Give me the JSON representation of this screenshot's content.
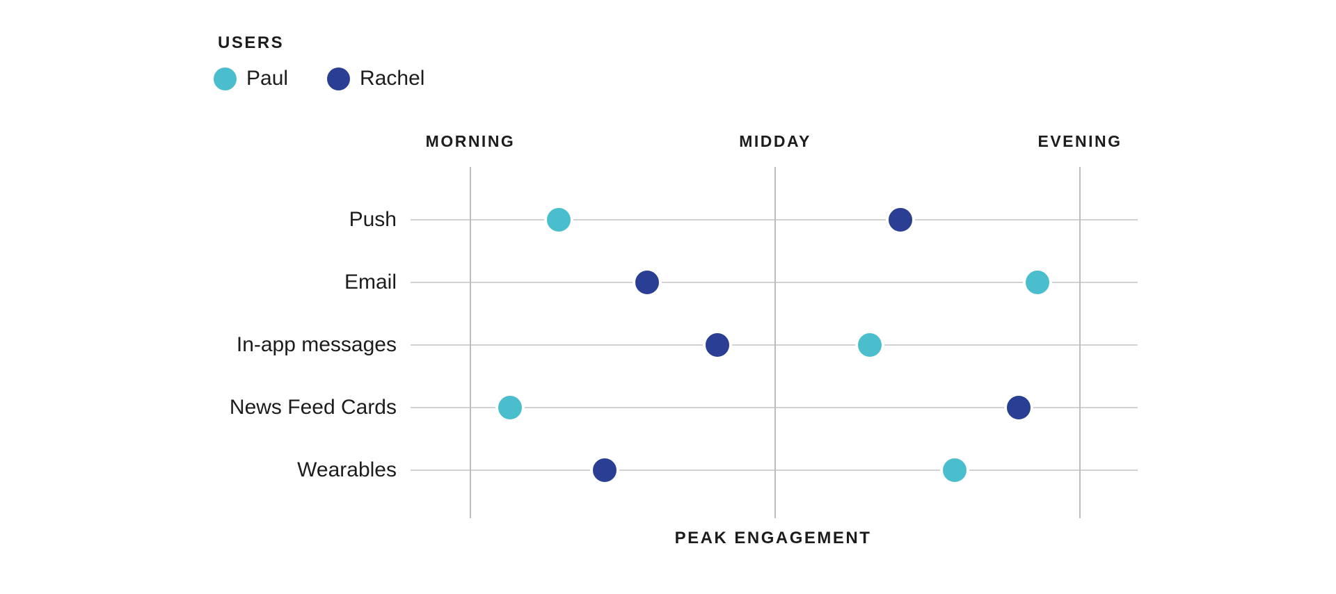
{
  "chart_data": {
    "type": "scatter",
    "legend_title": "USERS",
    "legend_position": "top-left",
    "categories": [
      "Push",
      "Email",
      "In-app messages",
      "News Feed Cards",
      "Wearables"
    ],
    "x_ticks": [
      "MORNING",
      "MIDDAY",
      "EVENING"
    ],
    "xlabel": "PEAK ENGAGEMENT",
    "xlim": [
      0,
      2
    ],
    "x_unit": "time-of-day position (0 = Morning tick, 1 = Midday tick, 2 = Evening tick)",
    "grid": true,
    "series": [
      {
        "name": "Paul",
        "color": "#4ABECD",
        "values": [
          0.29,
          1.86,
          1.31,
          0.13,
          1.59
        ]
      },
      {
        "name": "Rachel",
        "color": "#2A3E94",
        "values": [
          1.41,
          0.58,
          0.81,
          1.8,
          0.44
        ]
      }
    ]
  },
  "colors": {
    "background": "#ffffff",
    "text": "#1c1c1e",
    "grid_vertical": "#bdbdbd",
    "grid_horizontal": "#d2d2d2",
    "dot_halo": "#ffffff"
  }
}
